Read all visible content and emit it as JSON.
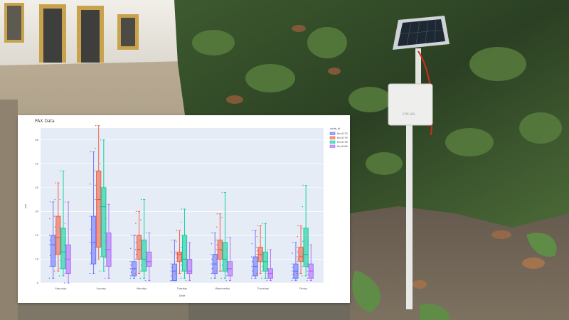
{
  "photo": {
    "device_label": "STM-LDS"
  },
  "chart_data": {
    "type": "box",
    "title": "PAX Data",
    "xlabel": "Date",
    "ylabel": "pax",
    "ylim": [
      0,
      65
    ],
    "yticks": [
      0,
      10,
      20,
      30,
      40,
      50,
      60
    ],
    "grid": true,
    "legend_title": "node_id",
    "legend_position": "top-right",
    "categories": [
      "Saturday",
      "Sunday",
      "Monday",
      "Tuesday",
      "Wednesday",
      "Thursday",
      "Friday"
    ],
    "series": [
      {
        "name": "ttn-0170",
        "color": "#636efa",
        "boxes": [
          {
            "min": 2,
            "q1": 7,
            "median": 16,
            "q3": 20,
            "max": 34
          },
          {
            "min": 4,
            "q1": 8,
            "median": 17,
            "q3": 28,
            "max": 55
          },
          {
            "min": 2,
            "q1": 3,
            "median": 6,
            "q3": 9,
            "max": 20
          },
          {
            "min": 1,
            "q1": 1,
            "median": 5,
            "q3": 8,
            "max": 18
          },
          {
            "min": 2,
            "q1": 4,
            "median": 8,
            "q3": 12,
            "max": 21
          },
          {
            "min": 2,
            "q1": 3,
            "median": 7,
            "q3": 11,
            "max": 22
          },
          {
            "min": 1,
            "q1": 2,
            "median": 5,
            "q3": 8,
            "max": 17
          }
        ]
      },
      {
        "name": "ttn-0179",
        "color": "#ef553b",
        "boxes": [
          {
            "min": 5,
            "q1": 12,
            "median": 19,
            "q3": 28,
            "max": 42
          },
          {
            "min": 10,
            "q1": 15,
            "median": 35,
            "q3": 47,
            "max": 66
          },
          {
            "min": 4,
            "q1": 10,
            "median": 14,
            "q3": 20,
            "max": 30
          },
          {
            "min": 4,
            "q1": 9,
            "median": 12,
            "q3": 13,
            "max": 22
          },
          {
            "min": 5,
            "q1": 10,
            "median": 14,
            "q3": 18,
            "max": 29
          },
          {
            "min": 4,
            "q1": 9,
            "median": 12,
            "q3": 15,
            "max": 24
          },
          {
            "min": 4,
            "q1": 9,
            "median": 11,
            "q3": 15,
            "max": 24
          }
        ]
      },
      {
        "name": "ttn-0178",
        "color": "#00cc96",
        "boxes": [
          {
            "min": 3,
            "q1": 6,
            "median": 13,
            "q3": 23,
            "max": 47
          },
          {
            "min": 5,
            "q1": 11,
            "median": 32,
            "q3": 40,
            "max": 60
          },
          {
            "min": 2,
            "q1": 5,
            "median": 10,
            "q3": 18,
            "max": 35
          },
          {
            "min": 2,
            "q1": 5,
            "median": 10,
            "q3": 20,
            "max": 31
          },
          {
            "min": 2,
            "q1": 5,
            "median": 10,
            "q3": 17,
            "max": 38
          },
          {
            "min": 2,
            "q1": 5,
            "median": 9,
            "q3": 13,
            "max": 25
          },
          {
            "min": 3,
            "q1": 7,
            "median": 12,
            "q3": 23,
            "max": 41
          }
        ]
      },
      {
        "name": "ttn-0169",
        "color": "#ab63fa",
        "boxes": [
          {
            "min": 0,
            "q1": 4,
            "median": 10,
            "q3": 16,
            "max": 34
          },
          {
            "min": 2,
            "q1": 7,
            "median": 14,
            "q3": 21,
            "max": 33
          },
          {
            "min": 1,
            "q1": 7,
            "median": 9,
            "q3": 13,
            "max": 21
          },
          {
            "min": 1,
            "q1": 4,
            "median": 5,
            "q3": 10,
            "max": 17
          },
          {
            "min": 1,
            "q1": 3,
            "median": 6,
            "q3": 9,
            "max": 19
          },
          {
            "min": 1,
            "q1": 2,
            "median": 4,
            "q3": 6,
            "max": 14
          },
          {
            "min": 1,
            "q1": 2,
            "median": 5,
            "q3": 8,
            "max": 16
          }
        ]
      }
    ]
  }
}
